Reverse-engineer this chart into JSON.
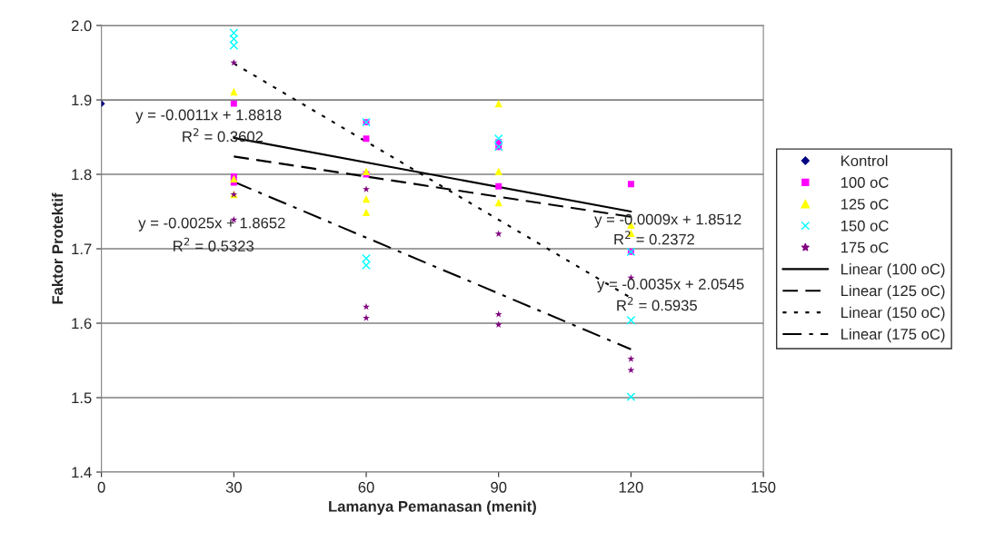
{
  "chart_data": {
    "type": "scatter",
    "xlabel": "Lamanya Pemanasan (menit)",
    "ylabel": "Faktor Protektif",
    "xlim": [
      0,
      150
    ],
    "xticks": [
      0,
      30,
      60,
      90,
      120,
      150
    ],
    "ylim": [
      1.4,
      2.0
    ],
    "yticks": [
      {
        "value": 1.4,
        "label": "1.4"
      },
      {
        "value": 1.5,
        "label": "1.5"
      },
      {
        "value": 1.6,
        "label": "1.6"
      },
      {
        "value": 1.7,
        "label": "1.7"
      },
      {
        "value": 1.8,
        "label": "1.8"
      },
      {
        "value": 1.9,
        "label": "1.9"
      },
      {
        "value": 2.0,
        "label": "2.0"
      }
    ],
    "grid": "y",
    "legend": "right",
    "series": [
      {
        "name": "Kontrol",
        "marker": "diamond",
        "color": "#000080",
        "x": [
          0
        ],
        "values": [
          1.895
        ]
      },
      {
        "name": "100 oC",
        "marker": "square",
        "color": "#ff00ff",
        "x": [
          30,
          30,
          30,
          60,
          60,
          60,
          90,
          90,
          90,
          120,
          120
        ],
        "values": [
          1.895,
          1.797,
          1.789,
          1.87,
          1.848,
          1.8,
          1.843,
          1.837,
          1.784,
          1.787,
          1.696
        ]
      },
      {
        "name": "125 oC",
        "marker": "triangle",
        "color": "#ffff00",
        "x": [
          30,
          30,
          30,
          60,
          60,
          60,
          90,
          90,
          90,
          120,
          120
        ],
        "values": [
          1.911,
          1.794,
          1.773,
          1.804,
          1.767,
          1.749,
          1.895,
          1.804,
          1.762,
          1.732,
          1.721
        ]
      },
      {
        "name": "150 oC",
        "marker": "cross",
        "color": "#00ffff",
        "x": [
          30,
          30,
          30,
          60,
          60,
          60,
          90,
          90,
          120,
          120,
          120
        ],
        "values": [
          1.99,
          1.982,
          1.973,
          1.87,
          1.687,
          1.678,
          1.848,
          1.837,
          1.696,
          1.604,
          1.501
        ]
      },
      {
        "name": "175 oC",
        "marker": "star",
        "color": "#800080",
        "x": [
          30,
          30,
          30,
          60,
          60,
          60,
          90,
          90,
          90,
          120,
          120,
          120
        ],
        "values": [
          1.95,
          1.773,
          1.739,
          1.78,
          1.622,
          1.607,
          1.72,
          1.612,
          1.598,
          1.661,
          1.552,
          1.537
        ]
      },
      {
        "name": "Linear (100 oC)",
        "type": "line",
        "line_style": "solid",
        "color": "#000000",
        "x": [
          30,
          120
        ],
        "values": [
          1.849,
          1.75
        ]
      },
      {
        "name": "Linear (125 oC)",
        "type": "line",
        "line_style": "dashed",
        "color": "#000000",
        "x": [
          30,
          120
        ],
        "values": [
          1.824,
          1.743
        ]
      },
      {
        "name": "Linear (150 oC)",
        "type": "line",
        "line_style": "dotted",
        "color": "#000000",
        "x": [
          30,
          120
        ],
        "values": [
          1.949,
          1.634
        ]
      },
      {
        "name": "Linear (175 oC)",
        "type": "line",
        "line_style": "dashdot",
        "color": "#000000",
        "x": [
          30,
          120
        ],
        "values": [
          1.79,
          1.565
        ]
      }
    ],
    "annotations": [
      "y = -0.0011x + 1.8818",
      "R$^{2}$ = 0.3602",
      "y = -0.0025x + 1.8652",
      "R$^{2}$ = 0.5323",
      "y = -0.0009x + 1.8512",
      "R$^{2}$ = 0.2372",
      "y = -0.0035x + 2.0545",
      "R$^{2}$ = 0.5935"
    ]
  }
}
